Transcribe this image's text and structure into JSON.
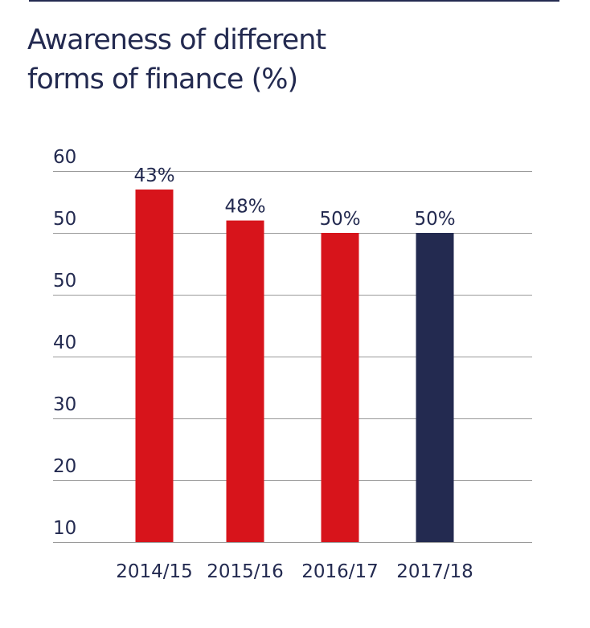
{
  "header": {
    "title_line1": "Awareness of different",
    "title_line2": "forms of finance (%)"
  },
  "colors": {
    "text": "#232a50",
    "highlight_bar": "#d7141b",
    "current_bar": "#232a50",
    "gridline": "#9a9a9a"
  },
  "chart_data": {
    "type": "bar",
    "title": "Awareness of different forms of finance (%)",
    "xlabel": "",
    "ylabel": "",
    "categories": [
      "2014/15",
      "2015/16",
      "2016/17",
      "2017/18"
    ],
    "values": [
      43,
      48,
      50,
      50
    ],
    "data_labels": [
      "43%",
      "48%",
      "50%",
      "50%"
    ],
    "bar_colors": [
      "#d7141b",
      "#d7141b",
      "#d7141b",
      "#232a50"
    ],
    "y_tick_labels": [
      "10",
      "20",
      "30",
      "40",
      "50",
      "50",
      "60"
    ],
    "grid": true,
    "legend": "none"
  }
}
